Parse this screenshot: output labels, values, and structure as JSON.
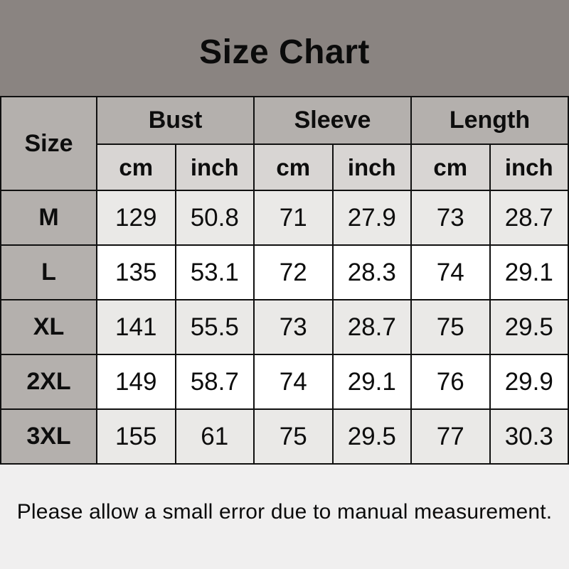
{
  "colors": {
    "banner_bg": "#8a8481",
    "header_cell_bg": "#b4b0ad",
    "unit_row_bg": "#d8d5d3",
    "shaded_row_bg": "#eae9e7",
    "white_row_bg": "#ffffff",
    "footer_bg": "#f0efef",
    "border": "#101010",
    "text": "#0d0d0d"
  },
  "chart_data": {
    "type": "table",
    "title": "Size Chart",
    "size_column_header": "Size",
    "column_groups": [
      "Bust",
      "Sleeve",
      "Length"
    ],
    "unit_headers": [
      "cm",
      "inch",
      "cm",
      "inch",
      "cm",
      "inch"
    ],
    "rows": [
      {
        "size": "M",
        "values": [
          129,
          50.8,
          71,
          27.9,
          73,
          28.7
        ]
      },
      {
        "size": "L",
        "values": [
          135,
          53.1,
          72,
          28.3,
          74,
          29.1
        ]
      },
      {
        "size": "XL",
        "values": [
          141,
          55.5,
          73,
          28.7,
          75,
          29.5
        ]
      },
      {
        "size": "2XL",
        "values": [
          149,
          58.7,
          74,
          29.1,
          76,
          29.9
        ]
      },
      {
        "size": "3XL",
        "values": [
          155,
          61,
          75,
          29.5,
          77,
          30.3
        ]
      }
    ],
    "note": "Please allow a small error due to manual measurement."
  }
}
